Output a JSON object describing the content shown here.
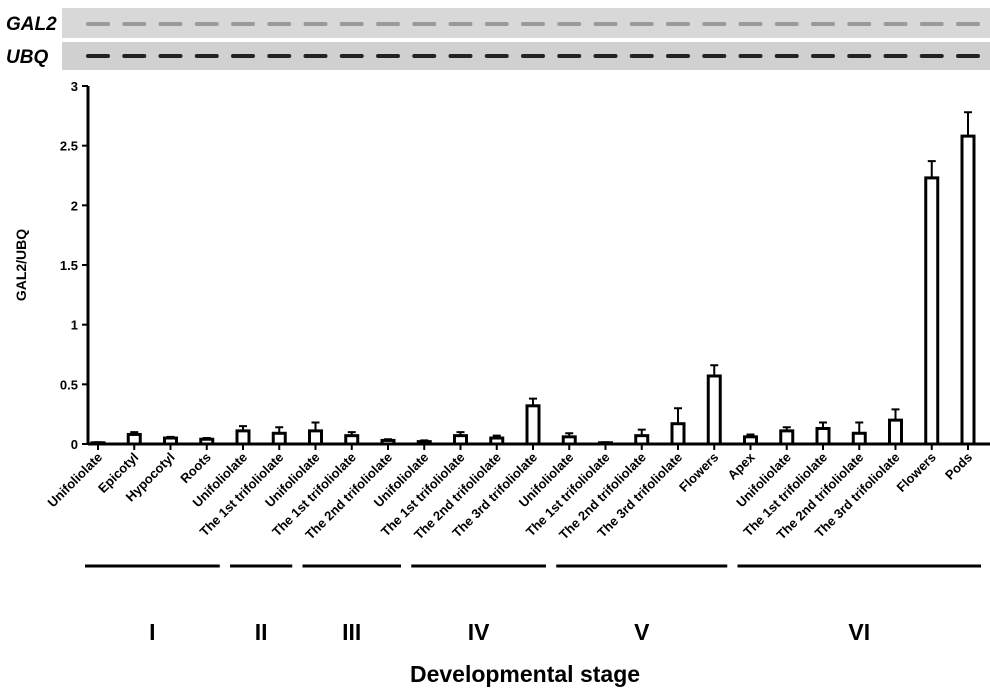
{
  "gel_labels": [
    "GAL2",
    "UBQ"
  ],
  "chart_data": {
    "type": "bar",
    "y_label": "GAL2/UBQ",
    "x_label": "Developmental stage",
    "ylim": [
      0,
      3
    ],
    "yticks": [
      0,
      0.5,
      1,
      1.5,
      2,
      2.5,
      3
    ],
    "color": "#ffffff",
    "groups": [
      {
        "label": "I",
        "categories": [
          "Unifoliolate",
          "Epicotyl",
          "Hypocotyl",
          "Roots"
        ],
        "values": [
          0.01,
          0.08,
          0.05,
          0.04
        ],
        "errors": [
          0.005,
          0.02,
          0.01,
          0.01
        ]
      },
      {
        "label": "II",
        "categories": [
          "Unifoliolate",
          "The 1st trifoliolate"
        ],
        "values": [
          0.11,
          0.09
        ],
        "errors": [
          0.04,
          0.05
        ]
      },
      {
        "label": "III",
        "categories": [
          "Unifoliolate",
          "The 1st trifoliolate",
          "The 2nd trifoliolate"
        ],
        "values": [
          0.11,
          0.07,
          0.03
        ],
        "errors": [
          0.07,
          0.03,
          0.01
        ]
      },
      {
        "label": "IV",
        "categories": [
          "Unifoliolate",
          "The 1st trifoliolate",
          "The 2nd trifoliolate",
          "The 3rd trifoliolate"
        ],
        "values": [
          0.02,
          0.07,
          0.05,
          0.32
        ],
        "errors": [
          0.01,
          0.03,
          0.02,
          0.06
        ]
      },
      {
        "label": "V",
        "categories": [
          "Unifoliolate",
          "The 1st trifoliolate",
          "The 2nd trifoliolate",
          "The 3rd trifoliolate",
          "Flowers"
        ],
        "values": [
          0.06,
          0.01,
          0.07,
          0.17,
          0.57
        ],
        "errors": [
          0.03,
          0.005,
          0.05,
          0.13,
          0.09
        ]
      },
      {
        "label": "VI",
        "categories": [
          "Apex",
          "Unifoliolate",
          "The 1st trifoliolate",
          "The 2nd trifoliolate",
          "The 3rd trifoliolate",
          "Flowers",
          "Pods"
        ],
        "values": [
          0.06,
          0.11,
          0.13,
          0.09,
          0.2,
          2.23,
          2.58
        ],
        "errors": [
          0.02,
          0.03,
          0.05,
          0.09,
          0.09,
          0.14,
          0.2
        ]
      }
    ]
  }
}
